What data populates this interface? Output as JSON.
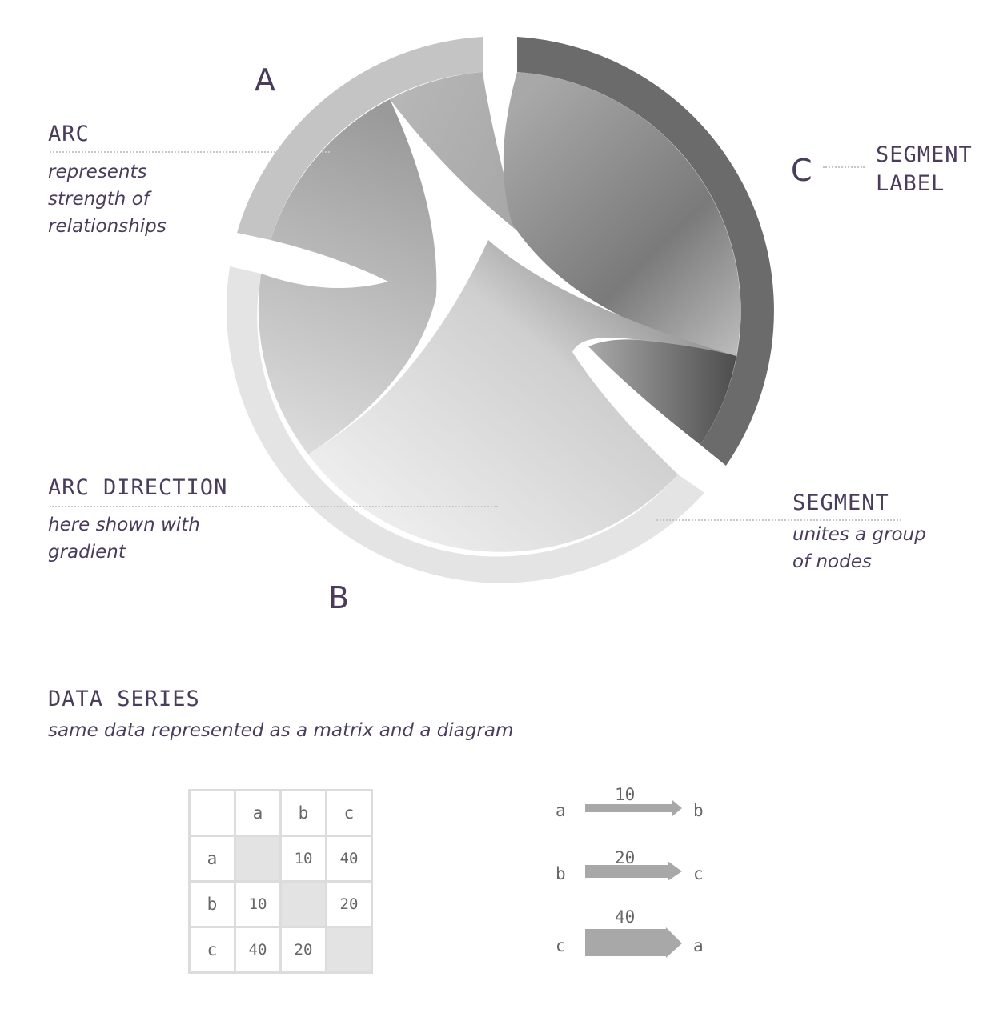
{
  "diagram": {
    "segments": [
      {
        "label": "A",
        "color": "#c4c4c4"
      },
      {
        "label": "B",
        "color": "#e4e4e4"
      },
      {
        "label": "C",
        "color": "#6b6b6b"
      }
    ]
  },
  "annotations": {
    "arc": {
      "title": "ARC",
      "desc": [
        "represents",
        "strength of",
        "relationships"
      ]
    },
    "segment_label": {
      "title": [
        "SEGMENT",
        "LABEL"
      ]
    },
    "arc_direction": {
      "title": "ARC DIRECTION",
      "desc": [
        "here shown with",
        "gradient"
      ]
    },
    "segment": {
      "title": "SEGMENT",
      "desc": [
        "unites a group",
        "of nodes"
      ]
    }
  },
  "data_series": {
    "title": "DATA SERIES",
    "subtitle": "same data represented as a matrix and a diagram"
  },
  "matrix": {
    "headers": [
      "a",
      "b",
      "c"
    ],
    "rows": [
      {
        "label": "a",
        "cells": [
          "",
          "10",
          "40"
        ]
      },
      {
        "label": "b",
        "cells": [
          "10",
          "",
          "20"
        ]
      },
      {
        "label": "c",
        "cells": [
          "40",
          "20",
          ""
        ]
      }
    ]
  },
  "flows": [
    {
      "from": "a",
      "to": "b",
      "value": 10
    },
    {
      "from": "b",
      "to": "c",
      "value": 20
    },
    {
      "from": "c",
      "to": "a",
      "value": 40
    }
  ]
}
